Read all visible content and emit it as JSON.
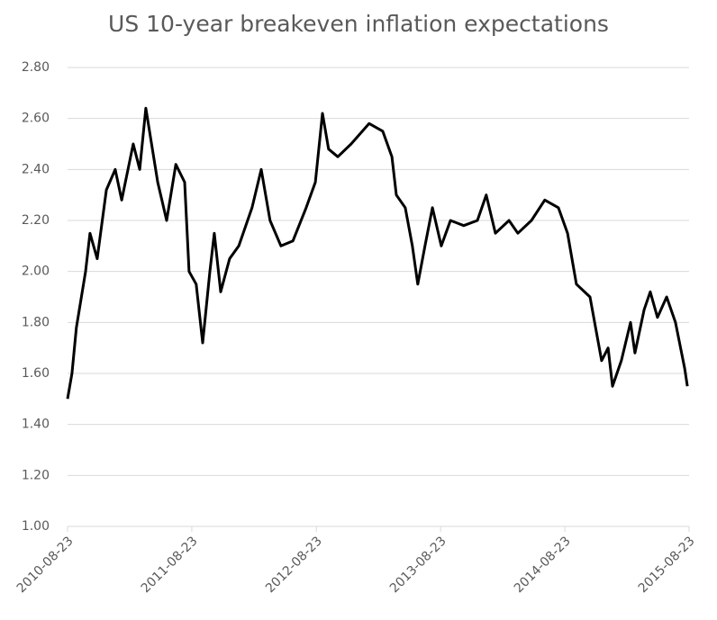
{
  "chart_data": {
    "type": "line",
    "title": "US 10-year breakeven inflation expectations",
    "x": [
      "2010-08-23",
      "2010-09-05",
      "2010-09-18",
      "2010-10-15",
      "2010-10-28",
      "2010-11-18",
      "2010-12-15",
      "2011-01-10",
      "2011-01-29",
      "2011-03-04",
      "2011-03-23",
      "2011-04-10",
      "2011-05-15",
      "2011-06-10",
      "2011-07-07",
      "2011-08-02",
      "2011-08-15",
      "2011-09-05",
      "2011-09-24",
      "2011-10-15",
      "2011-10-28",
      "2011-11-16",
      "2011-12-12",
      "2012-01-08",
      "2012-02-16",
      "2012-03-14",
      "2012-04-09",
      "2012-05-11",
      "2012-06-15",
      "2012-07-24",
      "2012-08-20",
      "2012-09-10",
      "2012-09-28",
      "2012-10-25",
      "2012-12-03",
      "2013-01-25",
      "2013-03-06",
      "2013-04-02",
      "2013-04-15",
      "2013-05-11",
      "2013-06-01",
      "2013-06-17",
      "2013-07-08",
      "2013-07-30",
      "2013-08-25",
      "2013-09-21",
      "2013-10-30",
      "2013-12-09",
      "2014-01-04",
      "2014-01-31",
      "2014-03-12",
      "2014-04-07",
      "2014-05-17",
      "2014-06-25",
      "2014-08-04",
      "2014-08-31",
      "2014-09-26",
      "2014-11-05",
      "2014-12-09",
      "2014-12-28",
      "2015-01-10",
      "2015-02-05",
      "2015-03-04",
      "2015-03-17",
      "2015-04-13",
      "2015-05-01",
      "2015-05-22",
      "2015-06-18",
      "2015-07-14",
      "2015-08-10",
      "2015-08-18"
    ],
    "series": [
      {
        "name": "US 10-year breakeven",
        "color": "#000000",
        "values": [
          1.5,
          1.6,
          1.78,
          2.0,
          2.15,
          2.05,
          2.32,
          2.4,
          2.28,
          2.5,
          2.4,
          2.64,
          2.35,
          2.2,
          2.42,
          2.35,
          2.0,
          1.95,
          1.72,
          2.0,
          2.15,
          1.92,
          2.05,
          2.1,
          2.25,
          2.4,
          2.2,
          2.1,
          2.12,
          2.25,
          2.35,
          2.62,
          2.48,
          2.45,
          2.5,
          2.58,
          2.55,
          2.45,
          2.3,
          2.25,
          2.1,
          1.95,
          2.1,
          2.25,
          2.1,
          2.2,
          2.18,
          2.2,
          2.3,
          2.15,
          2.2,
          2.15,
          2.2,
          2.28,
          2.25,
          2.15,
          1.95,
          1.9,
          1.65,
          1.7,
          1.55,
          1.65,
          1.8,
          1.68,
          1.85,
          1.92,
          1.82,
          1.9,
          1.8,
          1.62,
          1.55
        ]
      }
    ],
    "xlim": [
      "2010-08-23",
      "2015-08-23"
    ],
    "xticks": [
      "2010-08-23",
      "2011-08-23",
      "2012-08-23",
      "2013-08-23",
      "2014-08-23",
      "2015-08-23"
    ],
    "ylim": [
      1,
      2.8
    ],
    "yticks": [
      {
        "value": 1,
        "label": "1.00"
      },
      {
        "value": 1.2,
        "label": "1.20"
      },
      {
        "value": 1.4,
        "label": "1.40"
      },
      {
        "value": 1.6,
        "label": "1.60"
      },
      {
        "value": 1.8,
        "label": "1.80"
      },
      {
        "value": 2,
        "label": "2.00"
      },
      {
        "value": 2.2,
        "label": "2.20"
      },
      {
        "value": 2.4,
        "label": "2.40"
      },
      {
        "value": 2.6,
        "label": "2.60"
      },
      {
        "value": 2.8,
        "label": "2.80"
      }
    ],
    "grid": true
  }
}
